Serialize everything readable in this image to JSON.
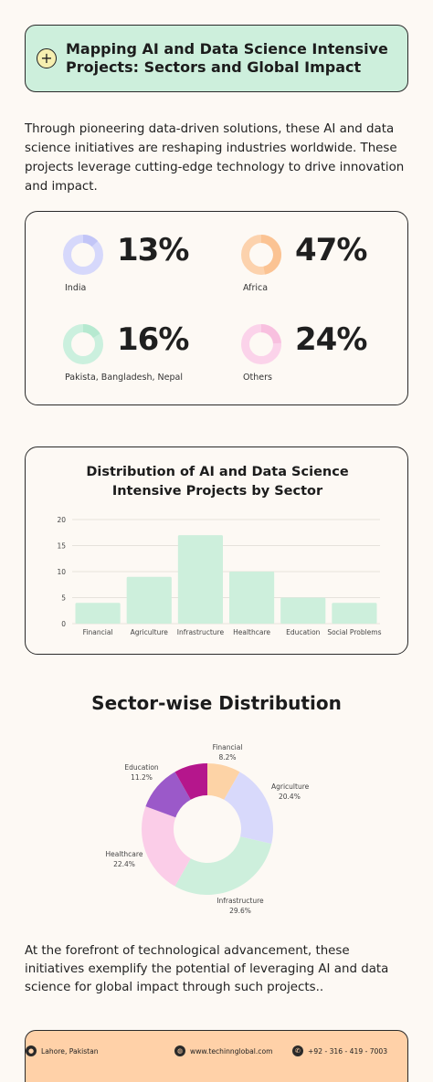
{
  "header": {
    "title_line1": "Mapping AI and Data Science Intensive",
    "title_line2": "Projects: Sectors and Global Impact",
    "icon": "plus-circle-icon"
  },
  "intro": "Through pioneering data-driven solutions, these AI and data science initiatives are reshaping industries worldwide. These projects leverage cutting-edge technology to drive innovation and impact.",
  "stats": [
    {
      "value": "13%",
      "label": "India",
      "fraction": 0.13,
      "color": "#d6d8fb",
      "accent": "#c2c5f7"
    },
    {
      "value": "47%",
      "label": "Africa",
      "fraction": 0.47,
      "color": "#fcd2ad",
      "accent": "#fbc393"
    },
    {
      "value": "16%",
      "label": "Pakista, Bangladesh, Nepal",
      "fraction": 0.16,
      "color": "#cbf0de",
      "accent": "#b6e9d0"
    },
    {
      "value": "24%",
      "label": "Others",
      "fraction": 0.24,
      "color": "#fbd3ea",
      "accent": "#f8c0df"
    }
  ],
  "outro": "At the forefront of technological advancement, these initiatives exemplify the potential of leveraging AI and data science for global impact through such projects..",
  "footer": {
    "location": "Lahore, Pakistan",
    "website": "www.techinnglobal.com",
    "phone": "+92 - 316 - 419 - 7003"
  },
  "chart_data": [
    {
      "type": "bar",
      "title_line1": "Distribution of AI and Data Science",
      "title_line2": "Intensive Projects by Sector",
      "categories": [
        "Financial",
        "Agriculture",
        "Infrastructure",
        "Healthcare",
        "Education",
        "Social Problems"
      ],
      "values": [
        4,
        9,
        17,
        10,
        5,
        4
      ],
      "ylim": [
        0,
        20
      ],
      "yticks": [
        "0",
        "5",
        "10",
        "15",
        "20"
      ],
      "grid": true,
      "color": "#cdefdc"
    },
    {
      "type": "pie",
      "title": "Sector-wise Distribution",
      "slices": [
        {
          "name": "Financial",
          "label": "8.2%",
          "value": 8.2,
          "color": "#fdd3a6"
        },
        {
          "name": "Agriculture",
          "label": "20.4%",
          "value": 20.4,
          "color": "#d8d9fb"
        },
        {
          "name": "Infrastructure",
          "label": "29.6%",
          "value": 29.6,
          "color": "#cdefdc"
        },
        {
          "name": "Healthcare",
          "label": "22.4%",
          "value": 22.4,
          "color": "#fbcde8"
        },
        {
          "name": "Education",
          "label": "11.2%",
          "value": 11.2,
          "color": "#9b59c9"
        },
        {
          "name": "Social Problems",
          "label": "",
          "value": 8.2,
          "color": "#b5168c"
        }
      ]
    }
  ]
}
